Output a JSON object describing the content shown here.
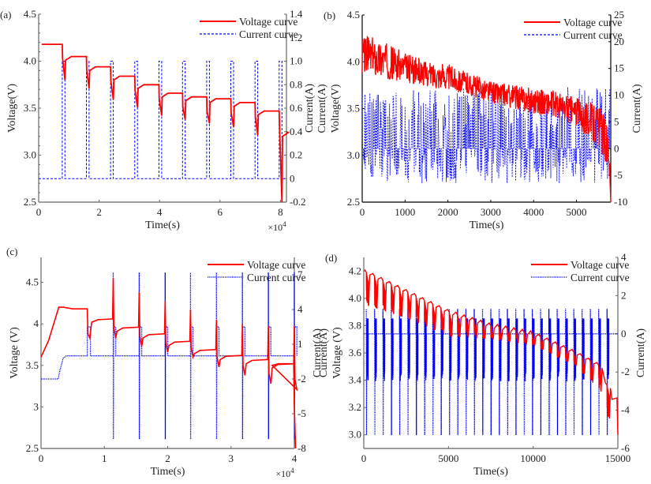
{
  "chart_data": [
    {
      "type": "line",
      "panel_label": "(a)",
      "title": "",
      "xlabel": "Time(s)",
      "x_exponent": "×10^4",
      "ylabel_left": "Voltage(V)",
      "ylabel_right": "Current(A)",
      "xlim": [
        0,
        8.2
      ],
      "ylim_left": [
        2.5,
        4.5
      ],
      "ylim_right": [
        -0.2,
        1.4
      ],
      "x_ticks": [
        "0",
        "2",
        "4",
        "6",
        "8"
      ],
      "y_ticks_left": [
        "2.5",
        "3.0",
        "3.5",
        "4.0",
        "4.5"
      ],
      "y_ticks_right": [
        "-0.2",
        "0",
        "0.2",
        "0.4",
        "0.6",
        "0.8",
        "1.0",
        "1.2",
        "1.4"
      ],
      "legend": [
        "Voltage curve",
        "Current curve"
      ],
      "legend_position": "top-right",
      "series": [
        {
          "name": "Voltage curve",
          "axis": "left",
          "color": "#ff0000",
          "style": "solid",
          "description": "Stepwise relaxation plateaus with dips at each pulse",
          "plateau_levels": [
            4.18,
            4.05,
            3.94,
            3.84,
            3.75,
            3.66,
            3.62,
            3.6,
            3.56,
            3.47,
            3.24
          ],
          "dip_levels": [
            3.8,
            3.71,
            3.59,
            3.51,
            3.42,
            3.38,
            3.34,
            3.3,
            3.21,
            2.5
          ],
          "pulse_times": [
            0.78,
            1.58,
            2.38,
            3.18,
            3.98,
            4.76,
            5.56,
            6.36,
            7.16,
            7.96
          ]
        },
        {
          "name": "Current curve",
          "axis": "right",
          "color": "#0000ff",
          "style": "dashed",
          "baseline": 0,
          "pulse_value": 1.0,
          "pulse_times": [
            0.78,
            1.58,
            2.38,
            3.18,
            3.98,
            4.76,
            5.56,
            6.36,
            7.16,
            7.96
          ],
          "pulse_width": 0.09
        }
      ]
    },
    {
      "type": "line",
      "panel_label": "(b)",
      "title": "",
      "xlabel": "Time(s)",
      "ylabel_left": "Voltage(V)",
      "ylabel_left_extra": "Current(A)",
      "ylabel_right": "Current(A)",
      "xlim": [
        0,
        5800
      ],
      "ylim_left": [
        2.5,
        4.5
      ],
      "ylim_right": [
        -10,
        25
      ],
      "x_ticks": [
        "0",
        "1000",
        "2000",
        "3000",
        "4000",
        "5000"
      ],
      "y_ticks_left": [
        "2.5",
        "3.0",
        "3.5",
        "4.0",
        "4.5"
      ],
      "y_ticks_right": [
        "-10",
        "-5",
        "0",
        "5",
        "10",
        "15",
        "20",
        "25"
      ],
      "legend": [
        "Voltage curve",
        "Current curve"
      ],
      "legend_position": "top-right",
      "series": [
        {
          "name": "Voltage curve",
          "axis": "left",
          "color": "#ff0000",
          "style": "solid",
          "description": "Dynamic profile, noisy band trending down",
          "envelope_x": [
            0,
            500,
            1000,
            1500,
            2000,
            2500,
            3000,
            3500,
            4000,
            4500,
            5000,
            5500,
            5750,
            5800
          ],
          "envelope_upper": [
            4.3,
            4.22,
            4.1,
            4.0,
            3.98,
            3.88,
            3.8,
            3.76,
            3.72,
            3.68,
            3.62,
            3.55,
            3.4,
            2.5
          ],
          "envelope_lower": [
            3.88,
            3.82,
            3.78,
            3.74,
            3.7,
            3.64,
            3.56,
            3.5,
            3.45,
            3.4,
            3.3,
            3.1,
            2.85,
            2.5
          ]
        },
        {
          "name": "Current curve",
          "axis": "right",
          "color": "#0000ff",
          "style": "dashed",
          "description": "Dynamic current pulses between about -6.5 A and 11.5 A, baseline 0",
          "max": 11.5,
          "min": -6.5,
          "baseline": 0
        }
      ]
    },
    {
      "type": "line",
      "panel_label": "(c)",
      "title": "",
      "xlabel": "Time(s)",
      "x_exponent": "×10^4",
      "ylabel_left": "Voltage (V)",
      "ylabel_right": "Current(A)",
      "xlim": [
        0,
        4.0
      ],
      "ylim_left": [
        2.5,
        4.8
      ],
      "ylim_right": [
        -8,
        8.5
      ],
      "x_ticks": [
        "0",
        "1",
        "2",
        "3",
        "4"
      ],
      "y_ticks_left": [
        "2.5",
        "3",
        "3.5",
        "4",
        "4.5"
      ],
      "y_ticks_right": [
        "-8",
        "-5",
        "-2",
        "1",
        "4",
        "7"
      ],
      "legend": [
        "Voltage curve",
        "Current curve"
      ],
      "legend_position": "top-right",
      "series": [
        {
          "name": "Voltage curve",
          "axis": "left",
          "color": "#ff0000",
          "style": "solid",
          "description": "Charge ramp from 3.6 to 4.2 V, then pulsed discharge steps with spikes",
          "charge": {
            "x": [
              0,
              0.12,
              0.28,
              0.35,
              0.5,
              0.73
            ],
            "y": [
              3.6,
              3.8,
              4.2,
              4.2,
              4.18,
              4.18
            ]
          },
          "plateau_levels": [
            4.06,
            3.96,
            3.88,
            3.79,
            3.69,
            3.62,
            3.57,
            3.52
          ],
          "spike_levels": [
            4.55,
            4.38,
            4.27,
            4.17,
            4.05,
            4.0,
            3.97,
            3.97
          ],
          "dip_levels": [
            3.83,
            3.73,
            3.66,
            3.6,
            3.48,
            3.38,
            3.28,
            3.21
          ],
          "pulse_times": [
            0.74,
            1.14,
            1.55,
            1.96,
            2.36,
            2.77,
            3.18,
            3.59,
            4.0
          ]
        },
        {
          "name": "Current curve",
          "axis": "right",
          "color": "#0000ff",
          "style": "dotted",
          "charge_current": -2.0,
          "rest_current": 0.0,
          "spike_high": 7.2,
          "spike_low": -7.2,
          "step_current": 2.5,
          "pulse_times": [
            1.14,
            1.55,
            1.96,
            2.36,
            2.77,
            3.18,
            3.59,
            4.0
          ]
        }
      ]
    },
    {
      "type": "line",
      "panel_label": "(d)",
      "title": "",
      "xlabel": "Time(s)",
      "ylabel_left": "Voltage (V)",
      "ylabel_left_extra": "Current(A)",
      "ylabel_right": "Current(A)",
      "xlim": [
        0,
        15000
      ],
      "ylim_left": [
        2.9,
        4.3
      ],
      "ylim_right": [
        -6,
        4
      ],
      "x_ticks": [
        "0",
        "5000",
        "10000",
        "15000"
      ],
      "y_ticks_left": [
        "3.0",
        "3.2",
        "3.4",
        "3.6",
        "3.8",
        "4.0",
        "4.2"
      ],
      "y_ticks_right": [
        "-6",
        "-4",
        "-2",
        "0",
        "2",
        "4"
      ],
      "legend": [
        "Voltage curve",
        "Current curve"
      ],
      "legend_position": "top-right",
      "series": [
        {
          "name": "Voltage curve",
          "axis": "left",
          "color": "#ff0000",
          "style": "solid",
          "description": "Repeated pulse groups, sawtooth declining trend",
          "group_count": 30,
          "trend_x": [
            0,
            2500,
            5000,
            7500,
            10000,
            12500,
            14000,
            14600,
            15000
          ],
          "trend_upper": [
            4.2,
            4.05,
            3.9,
            3.8,
            3.74,
            3.6,
            3.5,
            3.27,
            3.27
          ],
          "trend_lower": [
            3.95,
            3.85,
            3.72,
            3.7,
            3.65,
            3.5,
            3.3,
            3.0,
            3.0
          ]
        },
        {
          "name": "Current curve",
          "axis": "right",
          "color": "#0000ff",
          "style": "dotted",
          "group_count": 30,
          "levels": [
            1.3,
            0.8,
            0.0,
            -1.3,
            -2.5,
            -5.3
          ],
          "baseline": 0
        }
      ]
    }
  ]
}
